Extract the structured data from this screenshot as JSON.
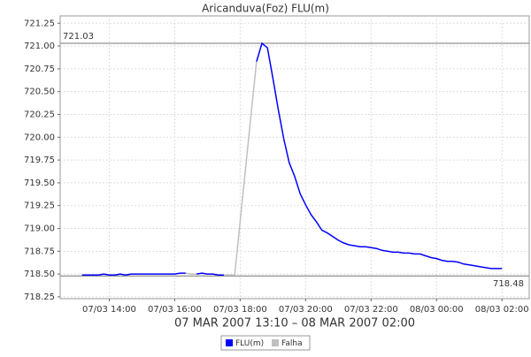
{
  "chart_data": {
    "type": "line",
    "title": "Aricanduva(Foz) FLU(m)",
    "x_label": "07 MAR 2007 13:10 – 08 MAR 2007 02:00",
    "x": [
      "2007-03-07T13:10",
      "2007-03-07T13:20",
      "2007-03-07T13:30",
      "2007-03-07T13:40",
      "2007-03-07T13:50",
      "2007-03-07T14:00",
      "2007-03-07T14:10",
      "2007-03-07T14:20",
      "2007-03-07T14:30",
      "2007-03-07T14:40",
      "2007-03-07T14:50",
      "2007-03-07T15:00",
      "2007-03-07T15:10",
      "2007-03-07T15:20",
      "2007-03-07T15:30",
      "2007-03-07T15:40",
      "2007-03-07T15:50",
      "2007-03-07T16:00",
      "2007-03-07T16:10",
      "2007-03-07T16:20",
      "2007-03-07T16:30",
      "2007-03-07T16:40",
      "2007-03-07T16:50",
      "2007-03-07T17:00",
      "2007-03-07T17:10",
      "2007-03-07T17:20",
      "2007-03-07T17:30",
      "2007-03-07T17:40",
      "2007-03-07T17:50",
      "2007-03-07T18:00",
      "2007-03-07T18:10",
      "2007-03-07T18:20",
      "2007-03-07T18:30",
      "2007-03-07T18:40",
      "2007-03-07T18:50",
      "2007-03-07T19:00",
      "2007-03-07T19:10",
      "2007-03-07T19:20",
      "2007-03-07T19:30",
      "2007-03-07T19:40",
      "2007-03-07T19:50",
      "2007-03-07T20:00",
      "2007-03-07T20:10",
      "2007-03-07T20:20",
      "2007-03-07T20:30",
      "2007-03-07T20:40",
      "2007-03-07T20:50",
      "2007-03-07T21:00",
      "2007-03-07T21:10",
      "2007-03-07T21:20",
      "2007-03-07T21:30",
      "2007-03-07T21:40",
      "2007-03-07T21:50",
      "2007-03-07T22:00",
      "2007-03-07T22:10",
      "2007-03-07T22:20",
      "2007-03-07T22:30",
      "2007-03-07T22:40",
      "2007-03-07T22:50",
      "2007-03-07T23:00",
      "2007-03-07T23:10",
      "2007-03-07T23:20",
      "2007-03-07T23:30",
      "2007-03-07T23:40",
      "2007-03-07T23:50",
      "2007-03-08T00:00",
      "2007-03-08T00:10",
      "2007-03-08T00:20",
      "2007-03-08T00:30",
      "2007-03-08T00:40",
      "2007-03-08T00:50",
      "2007-03-08T01:00",
      "2007-03-08T01:10",
      "2007-03-08T01:20",
      "2007-03-08T01:30",
      "2007-03-08T01:40",
      "2007-03-08T01:50",
      "2007-03-08T02:00"
    ],
    "series": [
      {
        "name": "FLU(m)",
        "color": "#0000ff",
        "values": [
          718.49,
          718.49,
          718.49,
          718.49,
          718.5,
          718.49,
          718.49,
          718.5,
          718.49,
          718.5,
          718.5,
          718.5,
          718.5,
          718.5,
          718.5,
          718.5,
          718.5,
          718.5,
          718.51,
          718.51,
          null,
          718.5,
          718.51,
          718.5,
          718.5,
          718.49,
          718.49,
          null,
          null,
          null,
          null,
          null,
          720.83,
          721.03,
          720.98,
          720.65,
          720.3,
          719.98,
          719.72,
          719.57,
          719.38,
          719.26,
          719.15,
          719.07,
          718.98,
          718.95,
          718.91,
          718.87,
          718.84,
          718.82,
          718.81,
          718.8,
          718.8,
          718.79,
          718.78,
          718.76,
          718.75,
          718.74,
          718.74,
          718.73,
          718.73,
          718.72,
          718.72,
          718.7,
          718.68,
          718.67,
          718.65,
          718.64,
          718.64,
          718.63,
          718.61,
          718.6,
          718.59,
          718.58,
          718.57,
          718.56,
          718.56,
          718.56
        ]
      },
      {
        "name": "Falha",
        "color": "#c0c0c0",
        "values": [
          null,
          null,
          null,
          null,
          null,
          null,
          null,
          null,
          null,
          null,
          null,
          null,
          null,
          null,
          null,
          null,
          null,
          null,
          null,
          718.51,
          718.5,
          718.5,
          null,
          null,
          null,
          null,
          718.49,
          718.49,
          718.49,
          719.08,
          719.66,
          720.25,
          720.83,
          null,
          null,
          null,
          null,
          null,
          null,
          null,
          null,
          null,
          null,
          null,
          null,
          null,
          null,
          null,
          null,
          null,
          null,
          null,
          null,
          null,
          null,
          null,
          null,
          null,
          null,
          null,
          null,
          null,
          null,
          null,
          null,
          null,
          null,
          null,
          null,
          null,
          null,
          null,
          null,
          null,
          null,
          null,
          null,
          null
        ]
      }
    ],
    "xlim": [
      "2007-03-07T12:30",
      "2007-03-08T02:50"
    ],
    "xticks": [
      {
        "value": "2007-03-07T14:00",
        "label": "07/03 14:00"
      },
      {
        "value": "2007-03-07T16:00",
        "label": "07/03 16:00"
      },
      {
        "value": "2007-03-07T18:00",
        "label": "07/03 18:00"
      },
      {
        "value": "2007-03-07T20:00",
        "label": "07/03 20:00"
      },
      {
        "value": "2007-03-07T22:00",
        "label": "07/03 22:00"
      },
      {
        "value": "2007-03-08T00:00",
        "label": "08/03 00:00"
      },
      {
        "value": "2007-03-08T02:00",
        "label": "08/03 02:00"
      }
    ],
    "ylim": [
      718.23,
      721.33
    ],
    "yticks": [
      {
        "value": 718.25,
        "label": "718.25"
      },
      {
        "value": 718.5,
        "label": "718.50"
      },
      {
        "value": 718.75,
        "label": "718.75"
      },
      {
        "value": 719,
        "label": "719.00"
      },
      {
        "value": 719.25,
        "label": "719.25"
      },
      {
        "value": 719.5,
        "label": "719.50"
      },
      {
        "value": 719.75,
        "label": "719.75"
      },
      {
        "value": 720,
        "label": "720.00"
      },
      {
        "value": 720.25,
        "label": "720.25"
      },
      {
        "value": 720.5,
        "label": "720.50"
      },
      {
        "value": 720.75,
        "label": "720.75"
      },
      {
        "value": 721,
        "label": "721.00"
      },
      {
        "value": 721.25,
        "label": "721.25"
      }
    ],
    "reference_lines": [
      721.03,
      718.48
    ],
    "grid": true,
    "legend": "bottom"
  }
}
